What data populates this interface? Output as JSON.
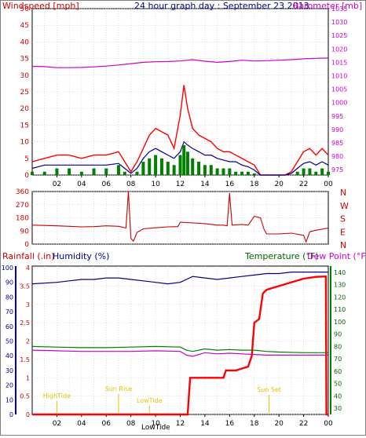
{
  "chart_data": [
    {
      "panel": "wind-and-barometer",
      "type": "line",
      "title": "24 hour graph day : September 23 2013",
      "left_axis_label": "Windspeed [mph]",
      "right_axis_label": "Barometer [mb]",
      "x_ticks": [
        "02",
        "04",
        "06",
        "08",
        "10",
        "12",
        "14",
        "16",
        "18",
        "20",
        "22",
        "00"
      ],
      "y_left_ticks": [
        0,
        5,
        10,
        15,
        20,
        25,
        30,
        35,
        40,
        45,
        50
      ],
      "y_left_range": [
        0,
        50
      ],
      "y_right_ticks": [
        975,
        980,
        985,
        990,
        995,
        1000,
        1005,
        1010,
        1015,
        1020,
        1025,
        1030,
        1035
      ],
      "y_right_range": [
        973,
        1035
      ],
      "x_range_hours": [
        0,
        24
      ],
      "series": [
        {
          "name": "Windspeed",
          "color": "#ff0000",
          "style": "spiky",
          "x": [
            0,
            1,
            2,
            3,
            4,
            5,
            6,
            7,
            7.5,
            8,
            8.5,
            9,
            9.5,
            10,
            10.5,
            11,
            11.5,
            12,
            12.3,
            12.6,
            13,
            13.5,
            14,
            14.5,
            15,
            15.5,
            16,
            16.5,
            17,
            17.5,
            18,
            18.5,
            19,
            19.5,
            20,
            20.5,
            21,
            21.5,
            22,
            22.5,
            23,
            23.5,
            24
          ],
          "y": [
            4,
            5,
            6,
            6,
            5,
            6,
            6,
            7,
            4,
            1,
            4,
            8,
            12,
            14,
            13,
            12,
            8,
            18,
            27,
            20,
            14,
            12,
            11,
            10,
            8,
            7,
            7,
            6,
            5,
            4,
            3,
            0,
            0,
            0,
            0,
            0,
            1,
            4,
            7,
            8,
            6,
            8,
            6
          ]
        },
        {
          "name": "Average wind",
          "color": "#00008b",
          "style": "smooth",
          "x": [
            0,
            1,
            2,
            3,
            4,
            5,
            6,
            7,
            7.5,
            8,
            8.5,
            9,
            9.5,
            10,
            10.5,
            11,
            11.5,
            12,
            12.3,
            12.6,
            13,
            13.5,
            14,
            14.5,
            15,
            15.5,
            16,
            16.5,
            17,
            17.5,
            18,
            18.5,
            19,
            19.5,
            20,
            20.5,
            21,
            21.5,
            22,
            22.5,
            23,
            23.5,
            24
          ],
          "y": [
            2,
            3,
            3,
            3,
            3,
            3,
            3,
            3.5,
            2,
            0.5,
            2,
            5,
            7,
            8,
            7,
            6,
            5,
            7,
            10,
            9,
            8,
            7,
            6,
            6,
            5,
            4.5,
            4,
            4,
            3,
            2.5,
            1.5,
            0,
            0,
            0,
            0,
            0,
            0.5,
            2,
            3.5,
            4,
            3,
            4,
            3
          ]
        },
        {
          "name": "Gust bars",
          "color": "#008000",
          "style": "bars",
          "x": [
            0,
            1,
            2,
            3,
            4,
            5,
            6,
            7,
            7.5,
            8,
            8.5,
            9,
            9.5,
            10,
            10.5,
            11,
            11.5,
            12,
            12.3,
            12.6,
            13,
            13.5,
            14,
            14.5,
            15,
            15.5,
            16,
            16.5,
            17,
            17.5,
            18,
            18.5,
            19,
            19.5,
            20,
            20.5,
            21,
            21.5,
            22,
            22.5,
            23,
            23.5,
            24
          ],
          "y": [
            1,
            1,
            2,
            2,
            1,
            2,
            2,
            3,
            1,
            0,
            1,
            4,
            5,
            6,
            5,
            4,
            3,
            6,
            9,
            7,
            5,
            4,
            3,
            3,
            2,
            2,
            2,
            1,
            1,
            1,
            0.5,
            0,
            0,
            0,
            0,
            0,
            0,
            1,
            2,
            2,
            1,
            2,
            1
          ]
        },
        {
          "name": "Barometer",
          "color": "#cc00cc",
          "axis": "right",
          "x": [
            0,
            1,
            2,
            3,
            4,
            5,
            6,
            7,
            8,
            9,
            10,
            11,
            12,
            13,
            14,
            15,
            16,
            17,
            18,
            19,
            20,
            21,
            22,
            23,
            24
          ],
          "y": [
            1013.5,
            1013.4,
            1013.0,
            1013.0,
            1013.1,
            1013.3,
            1013.6,
            1014.0,
            1014.5,
            1015.0,
            1015.2,
            1015.3,
            1015.5,
            1016.0,
            1015.4,
            1015.0,
            1015.3,
            1015.8,
            1015.5,
            1015.6,
            1015.8,
            1016.0,
            1016.3,
            1016.5,
            1016.6
          ]
        }
      ]
    },
    {
      "panel": "wind-direction",
      "type": "line",
      "y_left_ticks": [
        0,
        90,
        180,
        270,
        360
      ],
      "y_left_range": [
        0,
        360
      ],
      "y_right_ticks": [
        "N",
        "W",
        "S",
        "E",
        "N"
      ],
      "x_range_hours": [
        0,
        24
      ],
      "series": [
        {
          "name": "Wind direction",
          "color": "#cc0000",
          "x": [
            0,
            1,
            2,
            3,
            4,
            5,
            6,
            7,
            7.6,
            7.8,
            8,
            8.2,
            8.5,
            9,
            10,
            11,
            11.8,
            12,
            13,
            14,
            15,
            15.5,
            15.8,
            16,
            16.2,
            17,
            17.5,
            18,
            18.5,
            18.8,
            19,
            20,
            21,
            22,
            22.2,
            22.5,
            23,
            24
          ],
          "y": [
            130,
            128,
            125,
            122,
            118,
            120,
            125,
            122,
            110,
            360,
            40,
            20,
            80,
            105,
            112,
            118,
            120,
            150,
            145,
            140,
            130,
            130,
            125,
            350,
            130,
            135,
            130,
            190,
            180,
            100,
            70,
            70,
            75,
            60,
            15,
            85,
            95,
            110
          ]
        }
      ]
    },
    {
      "panel": "rain-humidity-temperature",
      "type": "line",
      "left_axis_label": "Rainfall (.in)",
      "left2_axis_label": "Humidity (%)",
      "right_axis_label": "Temperature (°F)",
      "right2_axis_label": "Dew Point (°F)",
      "y_rain_ticks": [
        0,
        0.5,
        1,
        1.5,
        2,
        2.5,
        3,
        3.5,
        4
      ],
      "y_rain_range": [
        0,
        4
      ],
      "y_humidity_ticks": [
        0,
        10,
        20,
        30,
        40,
        50,
        60,
        70,
        80,
        90,
        100
      ],
      "y_humidity_range": [
        0,
        100
      ],
      "y_temp_ticks": [
        30,
        40,
        50,
        60,
        70,
        80,
        90,
        100,
        110,
        120,
        130,
        140
      ],
      "y_temp_range": [
        25,
        145
      ],
      "x_range_hours": [
        0,
        24
      ],
      "annotations": [
        {
          "label": "HighTide",
          "hour": 2.0
        },
        {
          "label": "Sun Rise",
          "hour": 7.0
        },
        {
          "label": "LowTide",
          "hour": 9.5
        },
        {
          "label": "Sun Set",
          "hour": 19.2
        }
      ],
      "bottom_label": "LowTide",
      "series": [
        {
          "name": "Rainfall",
          "color": "#ff0000",
          "axis": "rain",
          "x": [
            0,
            12.6,
            12.8,
            15.5,
            15.7,
            16.5,
            17.5,
            17.8,
            18.0,
            18.4,
            18.7,
            19.0,
            20.0,
            22.0,
            23.0,
            23.8,
            23.85,
            24
          ],
          "y": [
            0,
            0,
            1.0,
            1.0,
            1.2,
            1.2,
            1.3,
            1.6,
            2.5,
            2.6,
            3.3,
            3.4,
            3.5,
            3.7,
            3.75,
            3.76,
            0,
            0
          ]
        },
        {
          "name": "Humidity",
          "color": "#00008b",
          "axis": "humidity",
          "x": [
            0,
            2,
            3,
            4,
            5,
            6,
            7,
            8,
            9,
            10,
            11,
            12,
            12.5,
            13,
            14,
            15,
            16,
            17,
            18,
            19,
            20,
            21,
            22,
            23,
            24
          ],
          "y": [
            89,
            90,
            91,
            92,
            92,
            93,
            93,
            92,
            91,
            90,
            89,
            90,
            92,
            94,
            93,
            92,
            93,
            94,
            95,
            96,
            96,
            97,
            97,
            97,
            97
          ]
        },
        {
          "name": "Temperature",
          "color": "#008000",
          "axis": "temp",
          "x": [
            0,
            2,
            4,
            6,
            8,
            10,
            12,
            12.5,
            13,
            14,
            15,
            16,
            17,
            18,
            19,
            20,
            22,
            24
          ],
          "y": [
            80,
            79.5,
            79,
            79,
            79.5,
            80,
            79.5,
            77,
            76,
            78,
            77,
            77.5,
            77,
            77,
            76,
            75.5,
            75,
            75
          ]
        },
        {
          "name": "Dew Point",
          "color": "#cc00cc",
          "axis": "temp",
          "x": [
            0,
            2,
            4,
            6,
            8,
            10,
            12,
            12.5,
            13,
            14,
            15,
            16,
            17,
            18,
            19,
            20,
            22,
            24
          ],
          "y": [
            77,
            76.5,
            76,
            76,
            76,
            76.5,
            76,
            73,
            72,
            75,
            74,
            74.5,
            74,
            73.5,
            73,
            73,
            73,
            73
          ]
        }
      ]
    }
  ]
}
